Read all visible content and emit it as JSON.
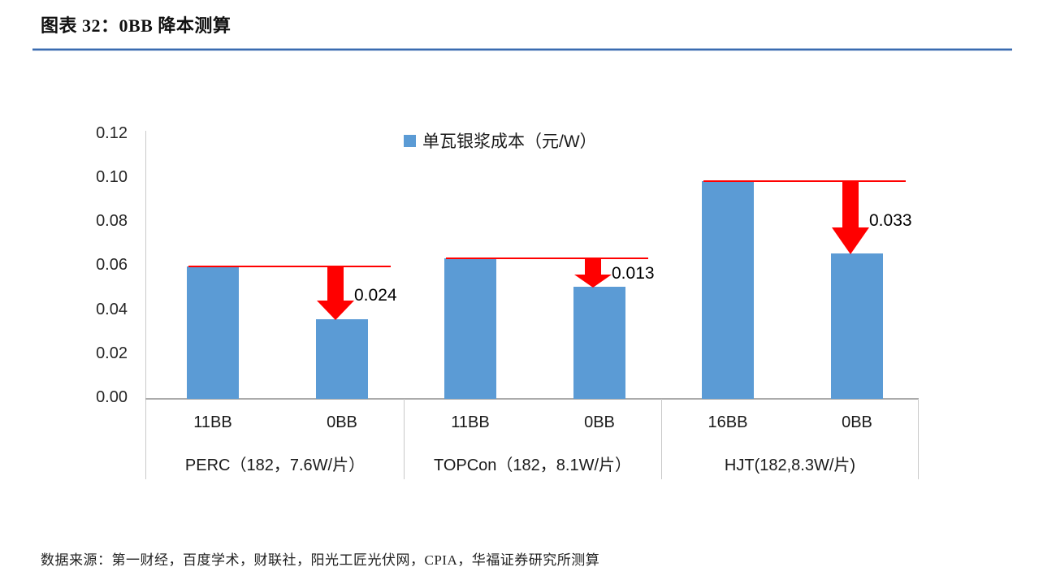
{
  "title": "图表 32：0BB 降本测算",
  "legend": {
    "label": "单瓦银浆成本（元/W）"
  },
  "source": "数据来源：第一财经，百度学术，财联社，阳光工匠光伏网，CPIA，华福证券研究所测算",
  "colors": {
    "bar": "#5B9BD5",
    "arrow": "#FF0000",
    "title_rule": "#3A6BB0",
    "axis_line": "#C9C9C9",
    "baseline": "#ABABAB",
    "text": "#1a1a1a"
  },
  "chart_data": {
    "type": "bar",
    "title": "单瓦银浆成本（元/W）",
    "legend_entries": [
      "单瓦银浆成本（元/W）"
    ],
    "legend_position": "top-center",
    "grid": false,
    "ylim": [
      0,
      0.12
    ],
    "ytick_step": 0.02,
    "ytick_labels": [
      "0.12",
      "0.10",
      "0.08",
      "0.06",
      "0.04",
      "0.02",
      "0.00"
    ],
    "groups": [
      {
        "label": "PERC（182，7.6W/片）",
        "categories": [
          "11BB",
          "0BB"
        ],
        "values": [
          0.06,
          0.036
        ],
        "reduction_label": "0.024"
      },
      {
        "label": "TOPCon（182，8.1W/片）",
        "categories": [
          "11BB",
          "0BB"
        ],
        "values": [
          0.064,
          0.051
        ],
        "reduction_label": "0.013"
      },
      {
        "label": "HJT(182,8.3W/片)",
        "categories": [
          "16BB",
          "0BB"
        ],
        "values": [
          0.099,
          0.066
        ],
        "reduction_label": "0.033"
      }
    ]
  }
}
